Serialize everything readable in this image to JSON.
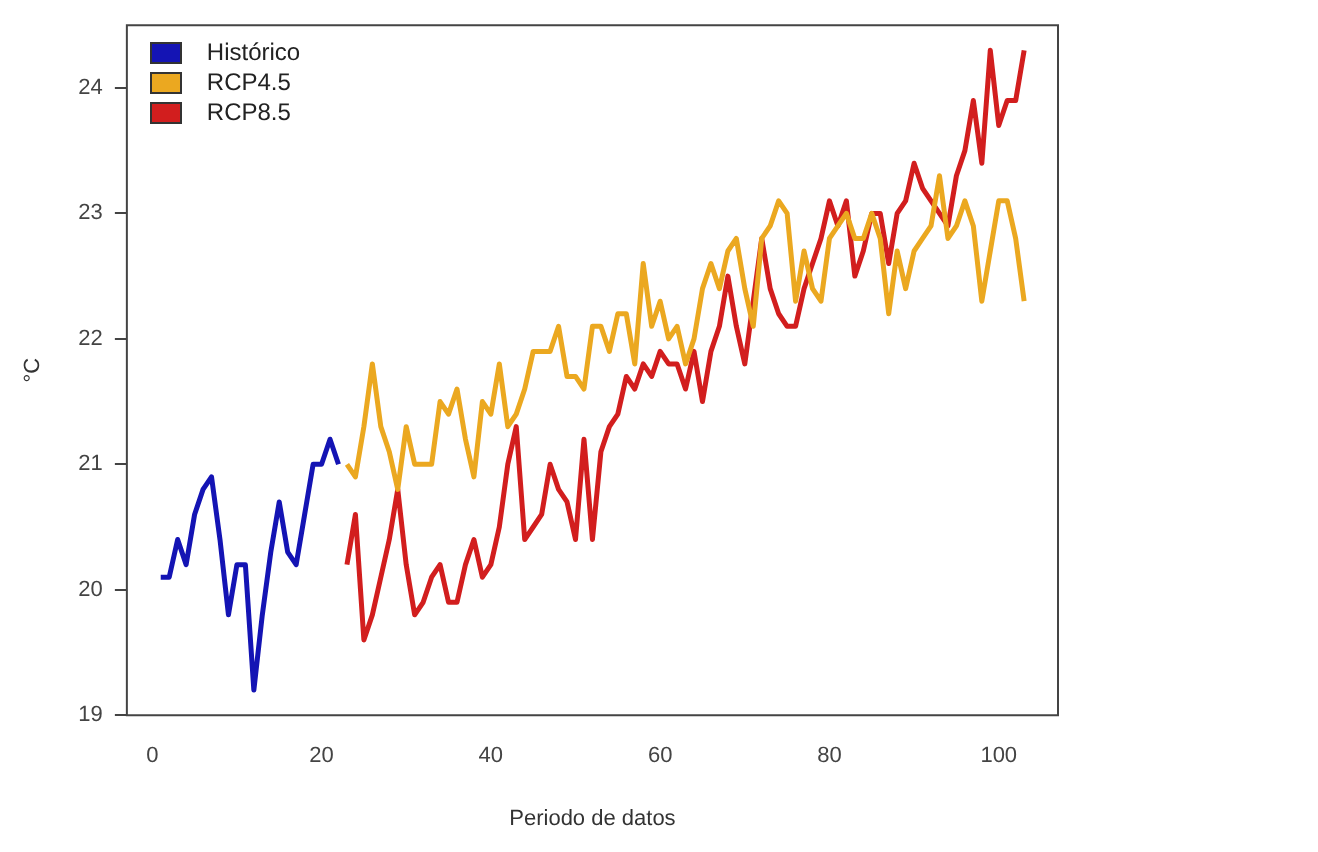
{
  "chart_data": {
    "type": "line",
    "xlabel": "Periodo de datos",
    "ylabel": "°C",
    "xlim": [
      -3,
      107
    ],
    "ylim": [
      19,
      24.5
    ],
    "xticks": [
      0,
      20,
      40,
      60,
      80,
      100
    ],
    "yticks": [
      19,
      20,
      21,
      22,
      23,
      24
    ],
    "grid": false,
    "legend": "top left",
    "marker": "none",
    "line_style": "solid",
    "series": [
      {
        "name": "Histórico",
        "color": "#1414b4",
        "x": [
          1,
          2,
          3,
          4,
          5,
          6,
          7,
          8,
          9,
          10,
          11,
          12,
          13,
          14,
          15,
          16,
          17,
          18,
          19,
          20,
          21,
          22
        ],
        "values": [
          20.1,
          20.1,
          20.4,
          20.2,
          20.6,
          20.8,
          20.9,
          20.4,
          19.8,
          20.2,
          20.2,
          19.2,
          19.8,
          20.3,
          20.7,
          20.3,
          20.2,
          20.6,
          21.0,
          21.0,
          21.2,
          21.0
        ]
      },
      {
        "name": "RCP4.5",
        "color": "#eba820",
        "x": [
          23,
          24,
          25,
          26,
          27,
          28,
          29,
          30,
          31,
          32,
          33,
          34,
          35,
          36,
          37,
          38,
          39,
          40,
          41,
          42,
          43,
          44,
          45,
          46,
          47,
          48,
          49,
          50,
          51,
          52,
          53,
          54,
          55,
          56,
          57,
          58,
          59,
          60,
          61,
          62,
          63,
          64,
          65,
          66,
          67,
          68,
          69,
          70,
          71,
          72,
          73,
          74,
          75,
          76,
          77,
          78,
          79,
          80,
          81,
          82,
          83,
          84,
          85,
          86,
          87,
          88,
          89,
          90,
          91,
          92,
          93,
          94,
          95,
          96,
          97,
          98,
          99,
          100,
          101,
          102,
          103
        ],
        "values": [
          21.0,
          20.9,
          21.3,
          21.8,
          21.3,
          21.1,
          20.8,
          21.3,
          21.0,
          21.0,
          21.0,
          21.5,
          21.4,
          21.6,
          21.2,
          20.9,
          21.5,
          21.4,
          21.8,
          21.3,
          21.4,
          21.6,
          21.9,
          21.9,
          21.9,
          22.1,
          21.7,
          21.7,
          21.6,
          22.1,
          22.1,
          21.9,
          22.2,
          22.2,
          21.8,
          22.6,
          22.1,
          22.3,
          22.0,
          22.1,
          21.8,
          22.0,
          22.4,
          22.6,
          22.4,
          22.7,
          22.8,
          22.4,
          22.1,
          22.8,
          22.9,
          23.1,
          23.0,
          22.3,
          22.7,
          22.4,
          22.3,
          22.8,
          22.9,
          23.0,
          22.8,
          22.8,
          23.0,
          22.8,
          22.2,
          22.7,
          22.4,
          22.7,
          22.8,
          22.9,
          23.3,
          22.8,
          22.9,
          23.1,
          22.9,
          22.3,
          22.7,
          23.1,
          23.1,
          22.8,
          22.3
        ]
      },
      {
        "name": "RCP8.5",
        "color": "#d21e1e",
        "x": [
          23,
          24,
          25,
          26,
          27,
          28,
          29,
          30,
          31,
          32,
          33,
          34,
          35,
          36,
          37,
          38,
          39,
          40,
          41,
          42,
          43,
          44,
          45,
          46,
          47,
          48,
          49,
          50,
          51,
          52,
          53,
          54,
          55,
          56,
          57,
          58,
          59,
          60,
          61,
          62,
          63,
          64,
          65,
          66,
          67,
          68,
          69,
          70,
          71,
          72,
          73,
          74,
          75,
          76,
          77,
          78,
          79,
          80,
          81,
          82,
          83,
          84,
          85,
          86,
          87,
          88,
          89,
          90,
          91,
          92,
          93,
          94,
          95,
          96,
          97,
          98,
          99,
          100,
          101,
          102,
          103
        ],
        "values": [
          20.2,
          20.6,
          19.6,
          19.8,
          20.1,
          20.4,
          20.8,
          20.2,
          19.8,
          19.9,
          20.1,
          20.2,
          19.9,
          19.9,
          20.2,
          20.4,
          20.1,
          20.2,
          20.5,
          21.0,
          21.3,
          20.4,
          20.5,
          20.6,
          21.0,
          20.8,
          20.7,
          20.4,
          21.2,
          20.4,
          21.1,
          21.3,
          21.4,
          21.7,
          21.6,
          21.8,
          21.7,
          21.9,
          21.8,
          21.8,
          21.6,
          21.9,
          21.5,
          21.9,
          22.1,
          22.5,
          22.1,
          21.8,
          22.3,
          22.8,
          22.4,
          22.2,
          22.1,
          22.1,
          22.4,
          22.6,
          22.8,
          23.1,
          22.9,
          23.1,
          22.5,
          22.7,
          23.0,
          23.0,
          22.6,
          23.0,
          23.1,
          23.4,
          23.2,
          23.1,
          23.0,
          22.9,
          23.3,
          23.5,
          23.9,
          23.4,
          24.3,
          23.7,
          23.9,
          23.9,
          24.3
        ]
      }
    ]
  }
}
